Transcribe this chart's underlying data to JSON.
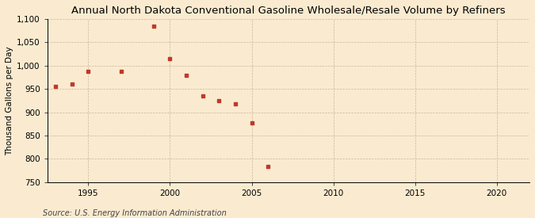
{
  "title": "Annual North Dakota Conventional Gasoline Wholesale/Resale Volume by Refiners",
  "ylabel": "Thousand Gallons per Day",
  "source": "Source: U.S. Energy Information Administration",
  "years": [
    1993,
    1994,
    1995,
    1997,
    1999,
    2000,
    2001,
    2002,
    2003,
    2004,
    2005,
    2006
  ],
  "values": [
    955,
    960,
    988,
    987,
    1085,
    1015,
    979,
    935,
    924,
    918,
    877,
    783
  ],
  "marker_color": "#c0392b",
  "background_color": "#faebd0",
  "grid_color": "#c8b89a",
  "ylim": [
    750,
    1100
  ],
  "xlim": [
    1992.5,
    2022
  ],
  "yticks": [
    750,
    800,
    850,
    900,
    950,
    1000,
    1050,
    1100
  ],
  "xticks": [
    1995,
    2000,
    2005,
    2010,
    2015,
    2020
  ],
  "title_fontsize": 9.5,
  "label_fontsize": 7.5,
  "tick_fontsize": 7.5,
  "source_fontsize": 7.0,
  "marker_size": 12
}
